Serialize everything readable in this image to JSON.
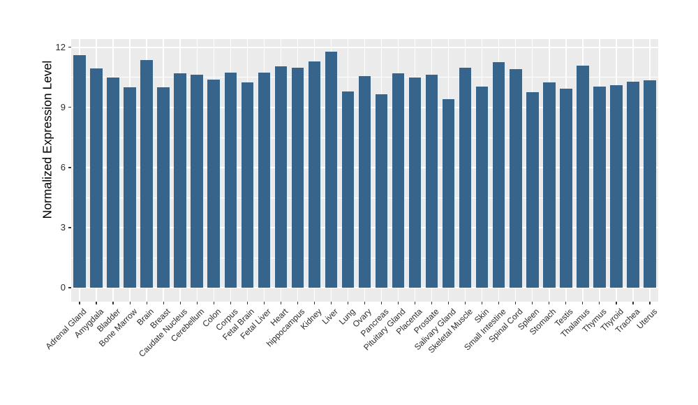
{
  "chart_data": {
    "type": "bar",
    "title": "",
    "xlabel": "",
    "ylabel": "Normalized Expression Level",
    "ylim": [
      0,
      12.6
    ],
    "yticks": [
      0,
      3,
      6,
      9,
      12
    ],
    "yminor": [
      1.5,
      4.5,
      7.5,
      10.5
    ],
    "grid": "major+minor, white on grey panel",
    "legend": false,
    "categories": [
      "Adrenal Gland",
      "Amygdala",
      "Bladder",
      "Bone Marrow",
      "Brain",
      "Breast",
      "Caudate Nucleus",
      "Cerebellum",
      "Colon",
      "Corpus",
      "Fetal Brain",
      "Fetal Liver",
      "Heart",
      "hippocampus",
      "Kidney",
      "Liver",
      "Lung",
      "Ovary",
      "Pancreas",
      "Pituitary Gland",
      "Placenta",
      "Prostate",
      "Salivary Gland",
      "Skeletal Muscle",
      "Skin",
      "Small Intestine",
      "Spinal Cord",
      "Spleen",
      "Stomach",
      "Testis",
      "Thalamus",
      "Thymus",
      "Thyroid",
      "Trachea",
      "Uterus"
    ],
    "values": [
      11.6,
      10.95,
      10.5,
      10.0,
      11.35,
      10.0,
      10.7,
      10.65,
      10.4,
      10.75,
      10.25,
      10.75,
      11.05,
      11.0,
      11.3,
      11.8,
      9.8,
      10.55,
      9.65,
      10.7,
      10.5,
      10.65,
      9.4,
      11.0,
      10.05,
      11.25,
      10.9,
      9.75,
      10.25,
      9.95,
      11.1,
      10.05,
      10.1,
      10.3,
      10.35
    ],
    "colors": {
      "bar": "#36648B",
      "panel_bg": "#EBEBEB",
      "grid": "#FFFFFF",
      "tick": "#333333",
      "axis_text": "#2B2B2B",
      "axis_title": "#000000",
      "page_bg": "#FFFFFF"
    }
  }
}
